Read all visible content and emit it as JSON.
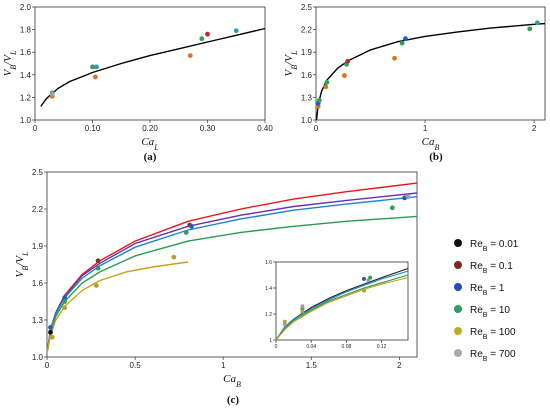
{
  "figure": {
    "panel_labels": [
      "(a)",
      "(b)",
      "(c)"
    ]
  },
  "chart_data": [
    {
      "panel": "(a)",
      "type": "scatter",
      "xlabel_main": "Ca",
      "xlabel_sub": "L",
      "ylabel_parts": [
        "V",
        "B",
        "/V",
        "L"
      ],
      "xlim": [
        0,
        0.4
      ],
      "ylim": [
        1.0,
        2.0
      ],
      "xticks": [
        "0",
        "0.10",
        "0.20",
        "0.30",
        "0.40"
      ],
      "yticks": [
        "1.0",
        "1.2",
        "1.4",
        "1.6",
        "1.8",
        "2.0"
      ],
      "fit_curve": {
        "color": "#000000",
        "x": [
          0.01,
          0.02,
          0.04,
          0.06,
          0.08,
          0.1,
          0.15,
          0.2,
          0.25,
          0.3,
          0.35,
          0.4
        ],
        "y": [
          1.12,
          1.19,
          1.28,
          1.34,
          1.38,
          1.42,
          1.5,
          1.57,
          1.63,
          1.69,
          1.75,
          1.81
        ]
      },
      "points": [
        {
          "x": 0.03,
          "y": 1.22,
          "color": "#1f5fbf"
        },
        {
          "x": 0.03,
          "y": 1.21,
          "color": "#e07020"
        },
        {
          "x": 0.03,
          "y": 1.24,
          "color": "#2ca05a"
        },
        {
          "x": 0.03,
          "y": 1.23,
          "color": "#a0a0a0"
        },
        {
          "x": 0.1,
          "y": 1.47,
          "color": "#2ca05a"
        },
        {
          "x": 0.105,
          "y": 1.38,
          "color": "#e07020"
        },
        {
          "x": 0.107,
          "y": 1.47,
          "color": "#2aa0a0"
        },
        {
          "x": 0.27,
          "y": 1.57,
          "color": "#e07020"
        },
        {
          "x": 0.29,
          "y": 1.72,
          "color": "#2ca05a"
        },
        {
          "x": 0.3,
          "y": 1.76,
          "color": "#c0262b"
        },
        {
          "x": 0.35,
          "y": 1.79,
          "color": "#2aa0a0"
        }
      ]
    },
    {
      "panel": "(b)",
      "type": "scatter",
      "xlabel_main": "Ca",
      "xlabel_sub": "B",
      "ylabel_parts": [
        "V",
        "B",
        "/V",
        "L"
      ],
      "xlim": [
        0,
        2.1
      ],
      "ylim": [
        1.0,
        2.5
      ],
      "xticks": [
        "0",
        "1",
        "2"
      ],
      "xtick_values": [
        0,
        1,
        2
      ],
      "yticks": [
        "1.0",
        "1.3",
        "1.6",
        "1.9",
        "2.2",
        "2.5"
      ],
      "fit_curve": {
        "color": "#000000",
        "x": [
          0.005,
          0.02,
          0.05,
          0.1,
          0.2,
          0.3,
          0.5,
          0.75,
          1.0,
          1.3,
          1.6,
          2.0,
          2.1
        ],
        "y": [
          1.0,
          1.2,
          1.38,
          1.53,
          1.69,
          1.79,
          1.93,
          2.04,
          2.11,
          2.17,
          2.22,
          2.27,
          2.28
        ]
      },
      "points": [
        {
          "x": 0.02,
          "y": 1.18,
          "color": "#e07020"
        },
        {
          "x": 0.02,
          "y": 1.22,
          "color": "#1f5fbf"
        },
        {
          "x": 0.03,
          "y": 1.26,
          "color": "#2ca05a"
        },
        {
          "x": 0.09,
          "y": 1.44,
          "color": "#e07020"
        },
        {
          "x": 0.1,
          "y": 1.5,
          "color": "#2ca05a"
        },
        {
          "x": 0.26,
          "y": 1.59,
          "color": "#e07020"
        },
        {
          "x": 0.28,
          "y": 1.74,
          "color": "#2ca05a"
        },
        {
          "x": 0.29,
          "y": 1.78,
          "color": "#c0262b"
        },
        {
          "x": 0.72,
          "y": 1.82,
          "color": "#e07020"
        },
        {
          "x": 0.79,
          "y": 2.02,
          "color": "#2ca05a"
        },
        {
          "x": 0.82,
          "y": 2.08,
          "color": "#1f5fbf"
        },
        {
          "x": 1.96,
          "y": 2.21,
          "color": "#2ca05a"
        },
        {
          "x": 2.03,
          "y": 2.29,
          "color": "#2aa0a0"
        }
      ]
    },
    {
      "panel": "(c)",
      "type": "line",
      "xlabel_main": "Ca",
      "xlabel_sub": "B",
      "ylabel_parts": [
        "V",
        "B",
        "/V",
        "L"
      ],
      "xlim": [
        0,
        2.1
      ],
      "ylim": [
        1.0,
        2.5
      ],
      "xticks": [
        "0",
        "0.5",
        "1",
        "1.5",
        "2"
      ],
      "xtick_values": [
        0,
        0.5,
        1,
        1.5,
        2
      ],
      "yticks": [
        "1.0",
        "1.3",
        "1.6",
        "1.9",
        "2.2",
        "2.5"
      ],
      "series": [
        {
          "color": "#e8161c",
          "x": [
            0.003,
            0.02,
            0.05,
            0.1,
            0.2,
            0.3,
            0.5,
            0.8,
            1.1,
            1.4,
            1.7,
            2.1
          ],
          "y": [
            1.05,
            1.22,
            1.36,
            1.5,
            1.67,
            1.78,
            1.94,
            2.1,
            2.2,
            2.28,
            2.34,
            2.41
          ]
        },
        {
          "color": "#6a2fb8",
          "x": [
            0.003,
            0.02,
            0.05,
            0.1,
            0.2,
            0.3,
            0.5,
            0.8,
            1.1,
            1.4,
            1.7,
            2.1
          ],
          "y": [
            1.05,
            1.22,
            1.36,
            1.49,
            1.66,
            1.76,
            1.92,
            2.06,
            2.15,
            2.22,
            2.27,
            2.33
          ]
        },
        {
          "color": "#1a86c8",
          "x": [
            0.003,
            0.02,
            0.05,
            0.1,
            0.2,
            0.3,
            0.5,
            0.8,
            1.1,
            1.4,
            1.7,
            2.1
          ],
          "y": [
            1.05,
            1.21,
            1.35,
            1.48,
            1.64,
            1.74,
            1.89,
            2.03,
            2.12,
            2.19,
            2.24,
            2.3
          ]
        },
        {
          "color": "#2c9a50",
          "x": [
            0.003,
            0.02,
            0.05,
            0.1,
            0.2,
            0.3,
            0.5,
            0.8,
            1.1,
            1.4,
            1.7,
            2.1
          ],
          "y": [
            1.05,
            1.2,
            1.33,
            1.45,
            1.6,
            1.69,
            1.82,
            1.94,
            2.01,
            2.06,
            2.1,
            2.14
          ]
        },
        {
          "color": "#c8a020",
          "x": [
            0.003,
            0.02,
            0.05,
            0.1,
            0.2,
            0.3,
            0.45,
            0.6,
            0.8
          ],
          "y": [
            1.05,
            1.18,
            1.3,
            1.41,
            1.54,
            1.62,
            1.69,
            1.73,
            1.77
          ]
        }
      ],
      "points": [
        {
          "x": 0.02,
          "y": 1.2,
          "color": "#111111"
        },
        {
          "x": 0.02,
          "y": 1.24,
          "color": "#1f5fbf"
        },
        {
          "x": 0.03,
          "y": 1.16,
          "color": "#b8a030"
        },
        {
          "x": 0.1,
          "y": 1.48,
          "color": "#1f5fbf"
        },
        {
          "x": 0.1,
          "y": 1.4,
          "color": "#b8a030"
        },
        {
          "x": 0.1,
          "y": 1.45,
          "color": "#2ca05a"
        },
        {
          "x": 0.28,
          "y": 1.58,
          "color": "#b8a030"
        },
        {
          "x": 0.29,
          "y": 1.72,
          "color": "#2ca05a"
        },
        {
          "x": 0.29,
          "y": 1.78,
          "color": "#7a3a1a"
        },
        {
          "x": 0.72,
          "y": 1.81,
          "color": "#b8a030"
        },
        {
          "x": 0.79,
          "y": 2.01,
          "color": "#2ca05a"
        },
        {
          "x": 0.81,
          "y": 2.07,
          "color": "#7a3a1a"
        },
        {
          "x": 0.82,
          "y": 2.06,
          "color": "#1f5fbf"
        },
        {
          "x": 1.96,
          "y": 2.21,
          "color": "#2ca05a"
        },
        {
          "x": 2.03,
          "y": 2.29,
          "color": "#1f5fbf"
        },
        {
          "x": 2.05,
          "y": 2.3,
          "color": "#a0a0a0"
        }
      ],
      "inset": {
        "xlim": [
          0,
          0.15
        ],
        "ylim": [
          1.0,
          1.6
        ],
        "xticks": [
          "0",
          "0.04",
          "0.08",
          "0.12"
        ],
        "xtick_values": [
          0,
          0.04,
          0.08,
          0.12
        ],
        "yticks": [
          "1",
          "1.2",
          "1.4",
          "1.6"
        ],
        "ytick_values": [
          1.0,
          1.2,
          1.4,
          1.6
        ],
        "series": [
          {
            "color": "#222222",
            "x": [
              0,
              0.01,
              0.02,
              0.04,
              0.06,
              0.08,
              0.1,
              0.12,
              0.15
            ],
            "y": [
              1.0,
              1.1,
              1.16,
              1.25,
              1.32,
              1.38,
              1.43,
              1.48,
              1.55
            ]
          },
          {
            "color": "#1a86c8",
            "x": [
              0,
              0.01,
              0.02,
              0.04,
              0.06,
              0.08,
              0.1,
              0.12,
              0.15
            ],
            "y": [
              1.0,
              1.1,
              1.16,
              1.24,
              1.31,
              1.37,
              1.42,
              1.47,
              1.53
            ]
          },
          {
            "color": "#2c9a50",
            "x": [
              0,
              0.01,
              0.02,
              0.04,
              0.06,
              0.08,
              0.1,
              0.12,
              0.15
            ],
            "y": [
              1.0,
              1.09,
              1.15,
              1.23,
              1.3,
              1.35,
              1.4,
              1.44,
              1.5
            ]
          },
          {
            "color": "#c8a020",
            "x": [
              0,
              0.01,
              0.02,
              0.04,
              0.06,
              0.08,
              0.1,
              0.12,
              0.15
            ],
            "y": [
              1.0,
              1.08,
              1.14,
              1.22,
              1.29,
              1.34,
              1.39,
              1.43,
              1.48
            ]
          }
        ],
        "points": [
          {
            "x": 0.01,
            "y": 1.14,
            "color": "#b8a030"
          },
          {
            "x": 0.01,
            "y": 1.12,
            "color": "#a0a0a0"
          },
          {
            "x": 0.03,
            "y": 1.24,
            "color": "#2ca05a"
          },
          {
            "x": 0.03,
            "y": 1.26,
            "color": "#a0a0a0"
          },
          {
            "x": 0.03,
            "y": 1.22,
            "color": "#b8a030"
          },
          {
            "x": 0.1,
            "y": 1.47,
            "color": "#1f5fbf"
          },
          {
            "x": 0.1,
            "y": 1.38,
            "color": "#b8a030"
          },
          {
            "x": 0.105,
            "y": 1.46,
            "color": "#a0a0a0"
          },
          {
            "x": 0.107,
            "y": 1.48,
            "color": "#2ca05a"
          }
        ]
      }
    }
  ],
  "legend": {
    "placement": "right",
    "entries": [
      {
        "prefix": "Re",
        "sub": "B",
        "value": " = 0.01",
        "color": "#111111"
      },
      {
        "prefix": "Re",
        "sub": "B",
        "value": " = 0.1",
        "color": "#7a2a18"
      },
      {
        "prefix": "Re",
        "sub": "B",
        "value": " = 1",
        "color": "#1f4fbf"
      },
      {
        "prefix": "Re",
        "sub": "B",
        "value": " = 10",
        "color": "#2ca05a"
      },
      {
        "prefix": "Re",
        "sub": "B",
        "value": " = 100",
        "color": "#b8b020"
      },
      {
        "prefix": "Re",
        "sub": "B",
        "value": " = 700",
        "color": "#a8a8a8"
      }
    ]
  }
}
